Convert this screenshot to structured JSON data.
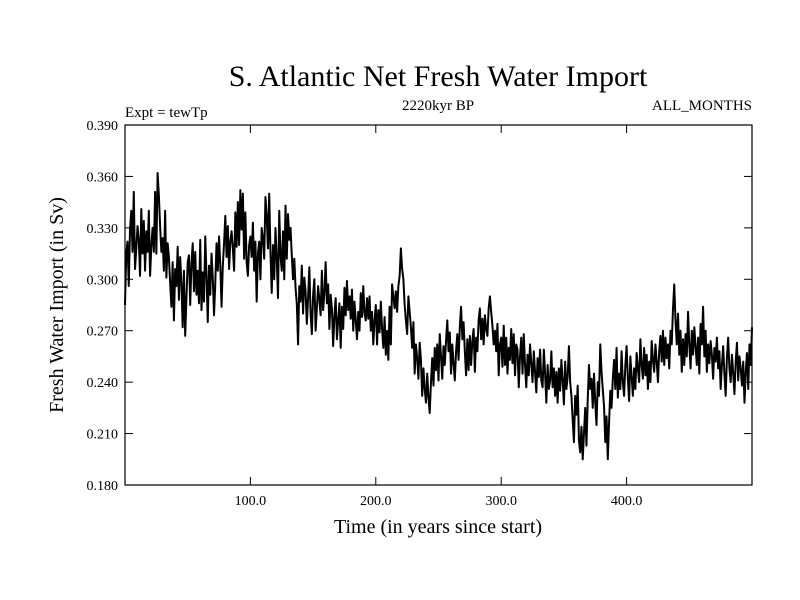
{
  "chart_data": {
    "type": "line",
    "title": "S. Atlantic Net Fresh Water Import",
    "left_label": "Expt = tewTp",
    "center_label": "2220kyr BP",
    "right_label": "ALL_MONTHS",
    "xlabel": "Time (in years since start)",
    "ylabel": "Fresh Water Import (in Sv)",
    "xlim": [
      0,
      500
    ],
    "ylim": [
      0.18,
      0.39
    ],
    "xticks": [
      100,
      200,
      300,
      400
    ],
    "xtick_labels": [
      "100.0",
      "200.0",
      "300.0",
      "400.0"
    ],
    "yticks": [
      0.18,
      0.21,
      0.24,
      0.27,
      0.3,
      0.33,
      0.36,
      0.39
    ],
    "ytick_labels": [
      "0.180",
      "0.210",
      "0.240",
      "0.270",
      "0.300",
      "0.330",
      "0.360",
      "0.390"
    ],
    "grid": false,
    "series": [
      {
        "name": "Net fresh water import",
        "color": "#000000",
        "x_start": 0,
        "x_step": 1,
        "values": [
          0.285,
          0.315,
          0.322,
          0.296,
          0.329,
          0.34,
          0.316,
          0.351,
          0.306,
          0.318,
          0.331,
          0.323,
          0.302,
          0.341,
          0.315,
          0.334,
          0.305,
          0.328,
          0.316,
          0.34,
          0.302,
          0.319,
          0.33,
          0.316,
          0.351,
          0.315,
          0.362,
          0.349,
          0.331,
          0.316,
          0.324,
          0.305,
          0.34,
          0.301,
          0.321,
          0.313,
          0.298,
          0.284,
          0.31,
          0.276,
          0.306,
          0.296,
          0.319,
          0.288,
          0.313,
          0.298,
          0.272,
          0.305,
          0.267,
          0.289,
          0.31,
          0.314,
          0.285,
          0.309,
          0.321,
          0.293,
          0.316,
          0.291,
          0.305,
          0.286,
          0.323,
          0.282,
          0.304,
          0.287,
          0.325,
          0.302,
          0.275,
          0.308,
          0.291,
          0.315,
          0.301,
          0.279,
          0.298,
          0.321,
          0.305,
          0.325,
          0.308,
          0.284,
          0.308,
          0.321,
          0.337,
          0.313,
          0.331,
          0.306,
          0.322,
          0.328,
          0.318,
          0.305,
          0.339,
          0.319,
          0.345,
          0.32,
          0.352,
          0.329,
          0.35,
          0.312,
          0.339,
          0.31,
          0.302,
          0.32,
          0.325,
          0.313,
          0.333,
          0.305,
          0.322,
          0.287,
          0.315,
          0.322,
          0.3,
          0.33,
          0.324,
          0.312,
          0.348,
          0.337,
          0.318,
          0.35,
          0.316,
          0.292,
          0.32,
          0.3,
          0.33,
          0.312,
          0.289,
          0.34,
          0.314,
          0.305,
          0.328,
          0.3,
          0.343,
          0.312,
          0.338,
          0.323,
          0.33,
          0.314,
          0.3,
          0.312,
          0.295,
          0.286,
          0.262,
          0.296,
          0.287,
          0.308,
          0.28,
          0.301,
          0.293,
          0.274,
          0.289,
          0.307,
          0.28,
          0.268,
          0.291,
          0.3,
          0.27,
          0.283,
          0.296,
          0.288,
          0.279,
          0.305,
          0.282,
          0.292,
          0.31,
          0.286,
          0.297,
          0.271,
          0.291,
          0.283,
          0.261,
          0.279,
          0.289,
          0.265,
          0.276,
          0.286,
          0.26,
          0.284,
          0.271,
          0.295,
          0.279,
          0.299,
          0.282,
          0.29,
          0.277,
          0.294,
          0.27,
          0.287,
          0.276,
          0.265,
          0.281,
          0.27,
          0.292,
          0.278,
          0.296,
          0.28,
          0.276,
          0.289,
          0.277,
          0.29,
          0.27,
          0.281,
          0.262,
          0.276,
          0.285,
          0.262,
          0.282,
          0.269,
          0.287,
          0.271,
          0.26,
          0.278,
          0.256,
          0.27,
          0.253,
          0.284,
          0.262,
          0.297,
          0.29,
          0.283,
          0.293,
          0.281,
          0.296,
          0.302,
          0.318,
          0.306,
          0.3,
          0.285,
          0.276,
          0.268,
          0.29,
          0.281,
          0.272,
          0.26,
          0.275,
          0.245,
          0.262,
          0.254,
          0.242,
          0.263,
          0.253,
          0.232,
          0.248,
          0.236,
          0.228,
          0.245,
          0.231,
          0.222,
          0.24,
          0.254,
          0.238,
          0.26,
          0.247,
          0.262,
          0.241,
          0.268,
          0.255,
          0.242,
          0.261,
          0.25,
          0.264,
          0.276,
          0.258,
          0.269,
          0.245,
          0.262,
          0.251,
          0.241,
          0.258,
          0.268,
          0.253,
          0.272,
          0.284,
          0.265,
          0.275,
          0.258,
          0.244,
          0.265,
          0.247,
          0.267,
          0.25,
          0.264,
          0.271,
          0.246,
          0.266,
          0.258,
          0.276,
          0.283,
          0.265,
          0.277,
          0.262,
          0.279,
          0.271,
          0.267,
          0.283,
          0.29,
          0.281,
          0.273,
          0.262,
          0.27,
          0.258,
          0.274,
          0.244,
          0.262,
          0.266,
          0.249,
          0.273,
          0.25,
          0.266,
          0.245,
          0.26,
          0.253,
          0.271,
          0.251,
          0.268,
          0.244,
          0.262,
          0.259,
          0.237,
          0.255,
          0.266,
          0.245,
          0.268,
          0.25,
          0.237,
          0.256,
          0.244,
          0.262,
          0.251,
          0.24,
          0.258,
          0.246,
          0.234,
          0.254,
          0.243,
          0.259,
          0.241,
          0.237,
          0.259,
          0.245,
          0.228,
          0.25,
          0.236,
          0.241,
          0.258,
          0.237,
          0.248,
          0.232,
          0.246,
          0.228,
          0.248,
          0.235,
          0.253,
          0.241,
          0.227,
          0.252,
          0.236,
          0.243,
          0.261,
          0.24,
          0.232,
          0.218,
          0.205,
          0.232,
          0.221,
          0.238,
          0.206,
          0.199,
          0.214,
          0.195,
          0.21,
          0.225,
          0.203,
          0.23,
          0.25,
          0.236,
          0.242,
          0.225,
          0.245,
          0.228,
          0.215,
          0.24,
          0.232,
          0.262,
          0.246,
          0.236,
          0.226,
          0.205,
          0.22,
          0.195,
          0.216,
          0.235,
          0.225,
          0.242,
          0.253,
          0.236,
          0.26,
          0.231,
          0.245,
          0.236,
          0.258,
          0.24,
          0.232,
          0.25,
          0.261,
          0.242,
          0.229,
          0.255,
          0.243,
          0.232,
          0.248,
          0.236,
          0.257,
          0.248,
          0.24,
          0.265,
          0.25,
          0.242,
          0.26,
          0.244,
          0.256,
          0.236,
          0.252,
          0.24,
          0.264,
          0.253,
          0.246,
          0.262,
          0.252,
          0.24,
          0.258,
          0.267,
          0.252,
          0.27,
          0.25,
          0.266,
          0.254,
          0.262,
          0.248,
          0.27,
          0.262,
          0.283,
          0.297,
          0.276,
          0.262,
          0.28,
          0.256,
          0.27,
          0.246,
          0.265,
          0.25,
          0.268,
          0.255,
          0.281,
          0.262,
          0.248,
          0.27,
          0.256,
          0.272,
          0.261,
          0.25,
          0.266,
          0.245,
          0.274,
          0.262,
          0.284,
          0.255,
          0.27,
          0.246,
          0.262,
          0.251,
          0.264,
          0.256,
          0.242,
          0.26,
          0.252,
          0.266,
          0.248,
          0.258,
          0.236,
          0.25,
          0.261,
          0.245,
          0.232,
          0.254,
          0.266,
          0.248,
          0.24,
          0.256,
          0.245,
          0.233,
          0.252,
          0.263,
          0.241,
          0.255,
          0.248,
          0.238,
          0.252,
          0.228,
          0.246,
          0.257,
          0.236,
          0.262,
          0.25,
          0.272
        ]
      }
    ]
  }
}
